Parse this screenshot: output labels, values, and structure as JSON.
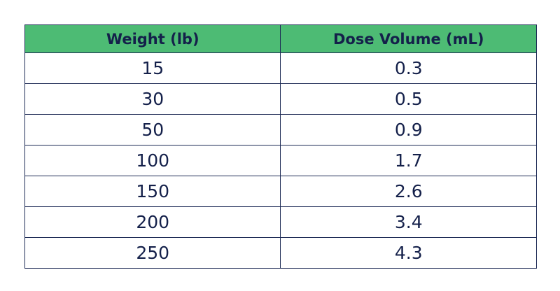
{
  "table": {
    "header": [
      "Weight (lb)",
      "Dose Volume (mL)"
    ],
    "rows": [
      [
        15,
        0.3
      ],
      [
        30,
        0.5
      ],
      [
        50,
        0.9
      ],
      [
        100,
        1.7
      ],
      [
        150,
        2.6
      ],
      [
        200,
        3.4
      ],
      [
        250,
        4.3
      ]
    ]
  }
}
